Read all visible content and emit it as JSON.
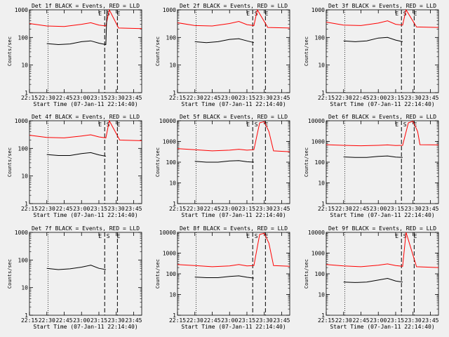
{
  "chart_data": [
    {
      "type": "line",
      "title": "Det 1f BLACK = Events, RED = LLD",
      "ylabel": "Counts/sec",
      "xlabel": "Start Time (07-Jan-11 22:14:40)",
      "yscale": "log",
      "ylim": [
        1,
        1000
      ],
      "y_ticks": [
        "1",
        "10",
        "100",
        "1000"
      ],
      "xlim": [
        "22:15",
        "23:52"
      ],
      "x_ticks": [
        "22:15",
        "22:30",
        "22:45",
        "23:00",
        "23:15",
        "23:30",
        "23:45"
      ],
      "annotations": [
        "E",
        "S",
        "E"
      ],
      "series": [
        {
          "name": "LLD",
          "color": "#ff0000",
          "x": [
            "22:15",
            "22:30",
            "22:45",
            "23:00",
            "23:08",
            "23:15",
            "23:21",
            "23:24",
            "23:24",
            "23:32",
            "23:52"
          ],
          "y": [
            320,
            260,
            250,
            300,
            340,
            280,
            260,
            1000,
            1000,
            220,
            210
          ]
        },
        {
          "name": "Events",
          "color": "#000000",
          "x": [
            "22:30",
            "22:40",
            "22:50",
            "23:00",
            "23:08",
            "23:15",
            "23:21",
            "23:22"
          ],
          "y": [
            60,
            55,
            58,
            70,
            75,
            62,
            55,
            1000
          ]
        }
      ]
    },
    {
      "type": "line",
      "title": "Det 2f BLACK = Events, RED = LLD",
      "ylabel": "Counts/sec",
      "xlabel": "Start Time (07-Jan-11 22:14:40)",
      "yscale": "log",
      "ylim": [
        1,
        1000
      ],
      "y_ticks": [
        "1",
        "10",
        "100",
        "1000"
      ],
      "xlim": [
        "22:15",
        "23:52"
      ],
      "x_ticks": [
        "22:15",
        "22:30",
        "22:45",
        "23:00",
        "23:15",
        "23:30",
        "23:45"
      ],
      "annotations": [
        "E",
        "S",
        "E"
      ],
      "series": [
        {
          "name": "LLD",
          "color": "#ff0000",
          "x": [
            "22:15",
            "22:30",
            "22:45",
            "23:00",
            "23:08",
            "23:15",
            "23:21",
            "23:24",
            "23:33",
            "23:52"
          ],
          "y": [
            340,
            270,
            260,
            320,
            380,
            290,
            270,
            1000,
            230,
            220
          ]
        },
        {
          "name": "Events",
          "color": "#000000",
          "x": [
            "22:30",
            "22:40",
            "22:50",
            "23:00",
            "23:08",
            "23:15",
            "23:21"
          ],
          "y": [
            70,
            65,
            70,
            85,
            90,
            75,
            65
          ]
        }
      ]
    },
    {
      "type": "line",
      "title": "Det 3f BLACK = Events, RED = LLD",
      "ylabel": "Counts/sec",
      "xlabel": "Start Time (07-Jan-11 22:14:40)",
      "yscale": "log",
      "ylim": [
        1,
        1000
      ],
      "y_ticks": [
        "1",
        "10",
        "100",
        "1000"
      ],
      "xlim": [
        "22:15",
        "23:52"
      ],
      "x_ticks": [
        "22:15",
        "22:30",
        "22:45",
        "23:00",
        "23:15",
        "23:30",
        "23:45"
      ],
      "annotations": [
        "E",
        "S",
        "E"
      ],
      "series": [
        {
          "name": "LLD",
          "color": "#ff0000",
          "x": [
            "22:15",
            "22:30",
            "22:45",
            "23:00",
            "23:08",
            "23:15",
            "23:21",
            "23:24",
            "23:33",
            "23:52"
          ],
          "y": [
            360,
            280,
            270,
            330,
            400,
            300,
            280,
            1000,
            240,
            230
          ]
        },
        {
          "name": "Events",
          "color": "#000000",
          "x": [
            "22:30",
            "22:40",
            "22:50",
            "23:00",
            "23:08",
            "23:15",
            "23:21"
          ],
          "y": [
            75,
            70,
            75,
            95,
            100,
            80,
            70
          ]
        }
      ]
    },
    {
      "type": "line",
      "title": "Det 4f BLACK = Events, RED = LLD",
      "ylabel": "Counts/sec",
      "xlabel": "Start Time (07-Jan-11 22:14:40)",
      "yscale": "log",
      "ylim": [
        1,
        1000
      ],
      "y_ticks": [
        "1",
        "10",
        "100",
        "1000"
      ],
      "xlim": [
        "22:15",
        "23:52"
      ],
      "x_ticks": [
        "22:15",
        "22:30",
        "22:45",
        "23:00",
        "23:15",
        "23:30",
        "23:45"
      ],
      "annotations": [
        "E",
        "S",
        "E"
      ],
      "series": [
        {
          "name": "LLD",
          "color": "#ff0000",
          "x": [
            "22:15",
            "22:30",
            "22:45",
            "23:00",
            "23:08",
            "23:15",
            "23:21",
            "23:24",
            "23:33",
            "23:52"
          ],
          "y": [
            300,
            250,
            240,
            280,
            310,
            260,
            240,
            1000,
            200,
            190
          ]
        },
        {
          "name": "Events",
          "color": "#000000",
          "x": [
            "22:30",
            "22:40",
            "22:50",
            "23:00",
            "23:08",
            "23:15",
            "23:21"
          ],
          "y": [
            60,
            55,
            55,
            65,
            70,
            58,
            52
          ]
        }
      ]
    },
    {
      "type": "line",
      "title": "Det 5f BLACK = Events, RED = LLD",
      "ylabel": "Counts/sec",
      "xlabel": "Start Time (07-Jan-11 22:14:40)",
      "yscale": "log",
      "ylim": [
        1,
        10000
      ],
      "y_ticks": [
        "1",
        "10",
        "100",
        "1000",
        "10000"
      ],
      "xlim": [
        "22:15",
        "23:52"
      ],
      "x_ticks": [
        "22:15",
        "22:30",
        "22:45",
        "23:00",
        "23:15",
        "23:30",
        "23:45"
      ],
      "annotations": [
        "E",
        "S",
        "E"
      ],
      "series": [
        {
          "name": "LLD",
          "color": "#ff0000",
          "x": [
            "22:15",
            "22:30",
            "22:45",
            "23:00",
            "23:08",
            "23:15",
            "23:21",
            "23:26",
            "23:30",
            "23:34",
            "23:38",
            "23:52"
          ],
          "y": [
            450,
            400,
            350,
            380,
            420,
            380,
            400,
            8000,
            9000,
            3000,
            350,
            320
          ]
        },
        {
          "name": "Events",
          "color": "#000000",
          "x": [
            "22:30",
            "22:40",
            "22:50",
            "23:00",
            "23:08",
            "23:15",
            "23:21"
          ],
          "y": [
            110,
            100,
            100,
            115,
            120,
            105,
            100
          ]
        }
      ]
    },
    {
      "type": "line",
      "title": "Det 6f BLACK = Events, RED = LLD",
      "ylabel": "Counts/sec",
      "xlabel": "Start Time (07-Jan-11 22:14:40)",
      "yscale": "log",
      "ylim": [
        1,
        10000
      ],
      "y_ticks": [
        "1",
        "10",
        "100",
        "1000",
        "10000"
      ],
      "xlim": [
        "22:15",
        "23:52"
      ],
      "x_ticks": [
        "22:15",
        "22:30",
        "22:45",
        "23:00",
        "23:15",
        "23:30",
        "23:45"
      ],
      "annotations": [
        "E",
        "S",
        "E"
      ],
      "series": [
        {
          "name": "LLD",
          "color": "#ff0000",
          "x": [
            "22:15",
            "22:30",
            "22:45",
            "23:00",
            "23:08",
            "23:15",
            "23:21",
            "23:26",
            "23:30",
            "23:34",
            "23:36",
            "23:52"
          ],
          "y": [
            700,
            650,
            620,
            650,
            680,
            640,
            650,
            8000,
            9500,
            3000,
            700,
            680
          ]
        },
        {
          "name": "Events",
          "color": "#000000",
          "x": [
            "22:30",
            "22:40",
            "22:50",
            "23:00",
            "23:08",
            "23:15",
            "23:21"
          ],
          "y": [
            180,
            170,
            170,
            190,
            200,
            175,
            170
          ]
        }
      ]
    },
    {
      "type": "line",
      "title": "Det 7f BLACK = Events, RED = LLD",
      "ylabel": "Counts/sec",
      "xlabel": "Start Time (07-Jan-11 22:14:40)",
      "yscale": "log",
      "ylim": [
        1,
        1000
      ],
      "y_ticks": [
        "1",
        "10",
        "100",
        "1000"
      ],
      "xlim": [
        "22:15",
        "23:52"
      ],
      "x_ticks": [
        "22:15",
        "22:30",
        "22:45",
        "23:00",
        "23:15",
        "23:30",
        "23:45"
      ],
      "annotations": [
        "E",
        "S",
        "E"
      ],
      "series": [
        {
          "name": "Events",
          "color": "#000000",
          "x": [
            "22:30",
            "22:40",
            "22:50",
            "23:00",
            "23:08",
            "23:15",
            "23:21"
          ],
          "y": [
            50,
            45,
            48,
            55,
            65,
            50,
            45
          ]
        }
      ]
    },
    {
      "type": "line",
      "title": "Det 8f BLACK = Events, RED = LLD",
      "ylabel": "Counts/sec",
      "xlabel": "Start Time (07-Jan-11 22:14:40)",
      "yscale": "log",
      "ylim": [
        1,
        10000
      ],
      "y_ticks": [
        "1",
        "10",
        "100",
        "1000",
        "10000"
      ],
      "xlim": [
        "22:15",
        "23:52"
      ],
      "x_ticks": [
        "22:15",
        "22:30",
        "22:45",
        "23:00",
        "23:15",
        "23:30",
        "23:45"
      ],
      "annotations": [
        "E",
        "S",
        "E"
      ],
      "series": [
        {
          "name": "LLD",
          "color": "#ff0000",
          "x": [
            "22:15",
            "22:30",
            "22:45",
            "23:00",
            "23:08",
            "23:15",
            "23:21",
            "23:26",
            "23:30",
            "23:34",
            "23:38",
            "23:52"
          ],
          "y": [
            280,
            250,
            220,
            240,
            280,
            240,
            250,
            8000,
            9000,
            3000,
            250,
            230
          ]
        },
        {
          "name": "Events",
          "color": "#000000",
          "x": [
            "22:30",
            "22:40",
            "22:50",
            "23:00",
            "23:08",
            "23:15",
            "23:21"
          ],
          "y": [
            70,
            65,
            65,
            75,
            80,
            68,
            62
          ]
        }
      ]
    },
    {
      "type": "line",
      "title": "Det 9f BLACK = Events, RED = LLD",
      "ylabel": "Counts/sec",
      "xlabel": "Start Time (07-Jan-11 22:14:40)",
      "yscale": "log",
      "ylim": [
        1,
        10000
      ],
      "y_ticks": [
        "1",
        "10",
        "100",
        "1000",
        "10000"
      ],
      "xlim": [
        "22:15",
        "23:52"
      ],
      "x_ticks": [
        "22:15",
        "22:30",
        "22:45",
        "23:00",
        "23:15",
        "23:30",
        "23:45"
      ],
      "annotations": [
        "E",
        "S",
        "E"
      ],
      "series": [
        {
          "name": "LLD",
          "color": "#ff0000",
          "x": [
            "22:15",
            "22:30",
            "22:45",
            "23:00",
            "23:08",
            "23:15",
            "23:21",
            "23:24",
            "23:33",
            "23:52"
          ],
          "y": [
            280,
            240,
            220,
            260,
            300,
            250,
            230,
            10000,
            220,
            200
          ]
        },
        {
          "name": "Events",
          "color": "#000000",
          "x": [
            "22:30",
            "22:40",
            "22:50",
            "23:00",
            "23:08",
            "23:15",
            "23:21"
          ],
          "y": [
            40,
            38,
            40,
            50,
            60,
            45,
            40
          ]
        }
      ]
    }
  ]
}
